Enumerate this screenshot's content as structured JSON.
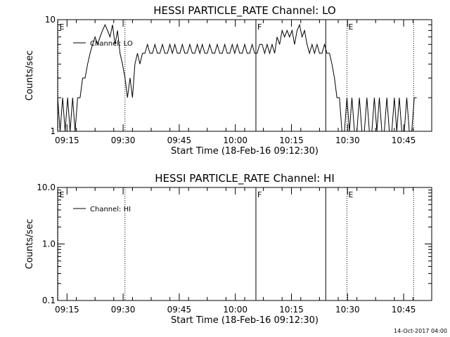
{
  "footer_timestamp": "14-Oct-2017 04:00",
  "x_ticks": [
    "09:15",
    "09:30",
    "09:45",
    "10:00",
    "10:15",
    "10:30",
    "10:45"
  ],
  "chart_data": [
    {
      "type": "line",
      "title": "HESSI PARTICLE_RATE Channel: LO",
      "xlabel": "Start Time (18-Feb-16 09:12:30)",
      "ylabel": "Counts/sec",
      "y_scale": "log",
      "ylim": [
        1,
        10
      ],
      "y_ticks": [
        "1",
        "10"
      ],
      "xlim": [
        "09:12:30",
        "10:52:30"
      ],
      "grid": false,
      "legend_position": "top-left",
      "series": [
        {
          "name": "Channel: LO",
          "x": [
            "09:12:30",
            "09:13:10",
            "09:13:50",
            "09:14:30",
            "09:15:10",
            "09:15:50",
            "09:16:30",
            "09:17:10",
            "09:17:50",
            "09:18:30",
            "09:19:10",
            "09:19:50",
            "09:20:30",
            "09:21:10",
            "09:21:50",
            "09:22:30",
            "09:23:10",
            "09:23:50",
            "09:24:30",
            "09:25:10",
            "09:25:50",
            "09:26:30",
            "09:27:10",
            "09:27:50",
            "09:28:30",
            "09:29:10",
            "09:29:50",
            "09:30:30",
            "09:31:10",
            "09:31:50",
            "09:32:30",
            "09:33:10",
            "09:33:50",
            "09:34:30",
            "09:35:10",
            "09:35:50",
            "09:36:30",
            "09:37:10",
            "09:37:50",
            "09:38:30",
            "09:39:10",
            "09:39:50",
            "09:40:30",
            "09:41:10",
            "09:41:50",
            "09:42:30",
            "09:43:10",
            "09:43:50",
            "09:44:30",
            "09:45:10",
            "09:45:50",
            "09:46:30",
            "09:47:10",
            "09:47:50",
            "09:48:30",
            "09:49:10",
            "09:49:50",
            "09:50:30",
            "09:51:10",
            "09:51:50",
            "09:52:30",
            "09:53:10",
            "09:53:50",
            "09:54:30",
            "09:55:10",
            "09:55:50",
            "09:56:30",
            "09:57:10",
            "09:57:50",
            "09:58:30",
            "09:59:10",
            "09:59:50",
            "10:00:30",
            "10:01:10",
            "10:01:50",
            "10:02:30",
            "10:03:10",
            "10:03:50",
            "10:04:30",
            "10:05:10",
            "10:05:50",
            "10:06:30",
            "10:07:10",
            "10:07:50",
            "10:08:30",
            "10:09:10",
            "10:09:50",
            "10:10:30",
            "10:11:10",
            "10:11:50",
            "10:12:30",
            "10:13:10",
            "10:13:50",
            "10:14:30",
            "10:15:10",
            "10:15:50",
            "10:16:30",
            "10:17:10",
            "10:17:50",
            "10:18:30",
            "10:19:10",
            "10:19:50",
            "10:20:30",
            "10:21:10",
            "10:21:50",
            "10:22:30",
            "10:23:10",
            "10:23:50",
            "10:24:30",
            "10:25:10",
            "10:25:50",
            "10:26:30",
            "10:27:10",
            "10:27:50",
            "10:28:30",
            "10:29:10",
            "10:29:50",
            "10:30:30",
            "10:31:10",
            "10:31:50",
            "10:32:30",
            "10:33:10",
            "10:33:50",
            "10:34:30",
            "10:35:10",
            "10:35:50",
            "10:36:30",
            "10:37:10",
            "10:37:50",
            "10:38:30",
            "10:39:10",
            "10:39:50",
            "10:40:30",
            "10:41:10",
            "10:41:50",
            "10:42:30",
            "10:43:10",
            "10:43:50",
            "10:44:30",
            "10:45:10",
            "10:45:50",
            "10:46:30",
            "10:47:10",
            "10:47:50",
            "10:48:30"
          ],
          "y": [
            2,
            1,
            2,
            1,
            2,
            1,
            2,
            1,
            2,
            2,
            3,
            3,
            4,
            5,
            6,
            7,
            6,
            7,
            8,
            9,
            8,
            7,
            9,
            6,
            8,
            5,
            4,
            3,
            2,
            3,
            2,
            4,
            5,
            4,
            5,
            5,
            6,
            5,
            5,
            6,
            5,
            5,
            6,
            5,
            5,
            6,
            5,
            6,
            5,
            5,
            6,
            5,
            5,
            6,
            5,
            5,
            6,
            5,
            6,
            5,
            5,
            6,
            5,
            5,
            6,
            5,
            5,
            6,
            5,
            5,
            6,
            5,
            6,
            5,
            5,
            6,
            5,
            5,
            6,
            5,
            5,
            6,
            6,
            5,
            6,
            5,
            6,
            5,
            7,
            6,
            8,
            7,
            8,
            7,
            8,
            6,
            8,
            9,
            7,
            8,
            6,
            5,
            6,
            5,
            6,
            5,
            5,
            6,
            5,
            5,
            4,
            3,
            2,
            2,
            1,
            1,
            2,
            1,
            2,
            1,
            1,
            2,
            1,
            1,
            2,
            1,
            1,
            2,
            1,
            2,
            1,
            1,
            2,
            1,
            1,
            2,
            1,
            2,
            1,
            1,
            2,
            1,
            1,
            2,
            2
          ]
        }
      ],
      "annotations": [
        {
          "label": "E",
          "time": "09:12:30",
          "style": "dotted"
        },
        {
          "label": "",
          "time": "09:30:30",
          "style": "dotted"
        },
        {
          "label": "F",
          "time": "10:05:30",
          "style": "solid"
        },
        {
          "label": "",
          "time": "10:24:10",
          "style": "solid"
        },
        {
          "label": "E",
          "time": "10:29:50",
          "style": "dotted"
        },
        {
          "label": "",
          "time": "10:47:40",
          "style": "dotted"
        }
      ]
    },
    {
      "type": "line",
      "title": "HESSI PARTICLE_RATE Channel: HI",
      "xlabel": "Start Time (18-Feb-16 09:12:30)",
      "ylabel": "Counts/sec",
      "y_scale": "log",
      "ylim": [
        0.1,
        10
      ],
      "y_ticks": [
        "0.1",
        "1.0",
        "10.0"
      ],
      "xlim": [
        "09:12:30",
        "10:52:30"
      ],
      "grid": false,
      "legend_position": "top-left",
      "series": [
        {
          "name": "Channel: HI",
          "x": [],
          "y": []
        }
      ],
      "annotations": [
        {
          "label": "E",
          "time": "09:12:30",
          "style": "dotted"
        },
        {
          "label": "",
          "time": "09:30:30",
          "style": "dotted"
        },
        {
          "label": "F",
          "time": "10:05:30",
          "style": "solid"
        },
        {
          "label": "",
          "time": "10:24:10",
          "style": "solid"
        },
        {
          "label": "E",
          "time": "10:29:50",
          "style": "dotted"
        },
        {
          "label": "",
          "time": "10:47:40",
          "style": "dotted"
        }
      ]
    }
  ]
}
